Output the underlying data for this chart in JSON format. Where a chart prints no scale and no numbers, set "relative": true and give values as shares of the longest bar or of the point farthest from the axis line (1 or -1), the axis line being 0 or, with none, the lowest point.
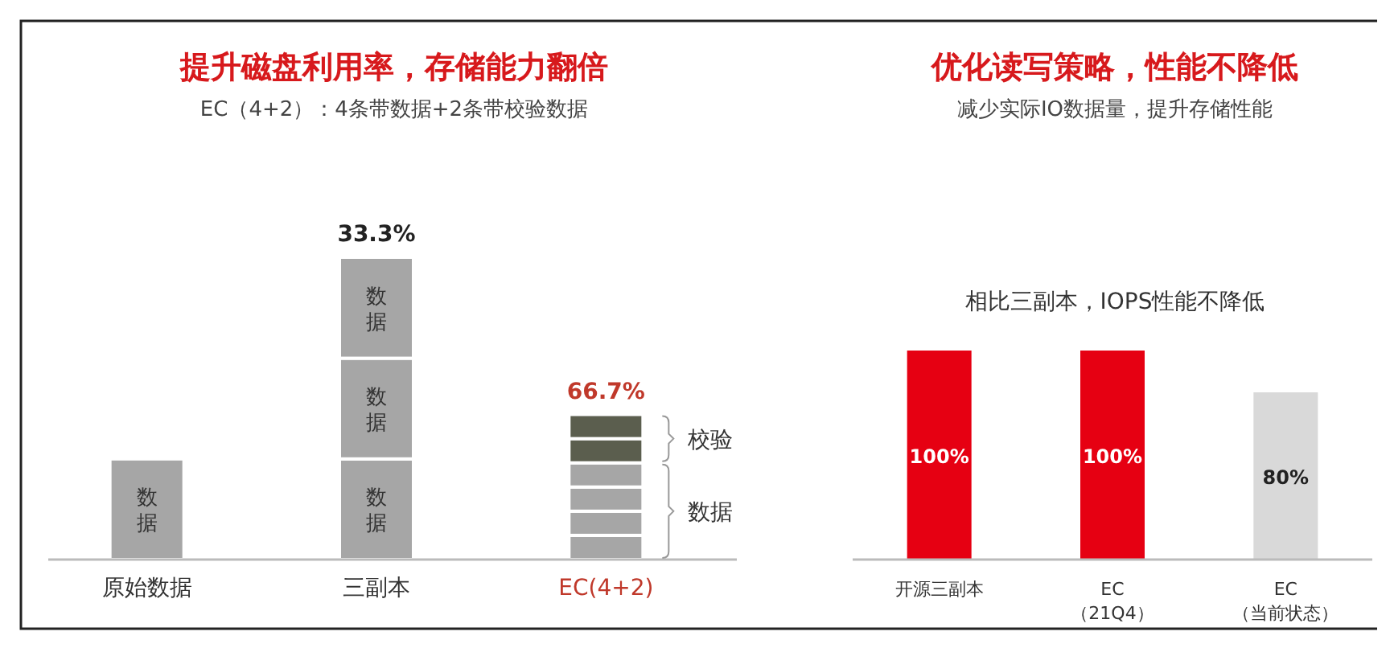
{
  "chart_data": [
    {
      "type": "bar",
      "title": "提升磁盘利用率，存储能力翻倍",
      "subtitle": "EC（4+2）：4条带数据+2条带校验数据",
      "categories": [
        "原始数据",
        "三副本",
        "EC(4+2)"
      ],
      "stacked": true,
      "relative": true,
      "series": [
        {
          "color": "#a6a6a6",
          "values": [
            0.333,
            0.333,
            0.08
          ]
        },
        {
          "color": "#a6a6a6",
          "values": [
            null,
            0.333,
            0.08
          ]
        },
        {
          "color": "#a6a6a6",
          "values": [
            null,
            0.334,
            0.08
          ]
        },
        {
          "color": "#a6a6a6",
          "values": [
            null,
            null,
            0.08
          ]
        },
        {
          "color": "#5b5e4e",
          "values": [
            null,
            null,
            0.08
          ]
        },
        {
          "color": "#5b5e4e",
          "values": [
            null,
            null,
            0.08
          ]
        }
      ],
      "annotations": [
        {
          "text": "33.3%",
          "x": "三副本",
          "y": 1
        },
        {
          "text": "66.7%",
          "x": "EC(4+2)",
          "y": 0.48
        },
        "数据",
        "数据",
        "数据",
        "数据",
        "校验",
        "数据"
      ]
    },
    {
      "type": "bar",
      "title": "优化读写策略，性能不降低",
      "subtitle": "减少实际IO数据量，提升存储性能",
      "categories": [
        "开源三副本",
        "EC\n（21Q4）",
        "EC\n（当前状态）"
      ],
      "values": [
        100,
        100,
        80
      ],
      "colors": [
        "#e60012",
        "#e60012",
        "#d9d9d9"
      ],
      "value_labels": [
        "100%",
        "100%",
        "80%"
      ],
      "annotations": [
        "相比三副本，IOPS性能不降低"
      ]
    }
  ]
}
